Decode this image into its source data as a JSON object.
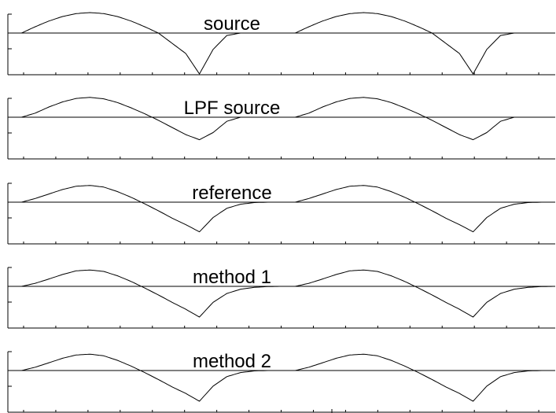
{
  "chart_data": [
    {
      "type": "line",
      "title": "source",
      "x": [
        0,
        0.05,
        0.1,
        0.15,
        0.2,
        0.25,
        0.3,
        0.35,
        0.4,
        0.45,
        0.5,
        0.55,
        0.6,
        0.65,
        0.7,
        0.75,
        0.8,
        0.85,
        0.9,
        0.95,
        1.0,
        1.05,
        1.1,
        1.15,
        1.2,
        1.25,
        1.3,
        1.35,
        1.4,
        1.45,
        1.5,
        1.55,
        1.6,
        1.65,
        1.7,
        1.75,
        1.8,
        1.85,
        1.9,
        1.95,
        2.0
      ],
      "series": [
        {
          "values": [
            0,
            0,
            0.309,
            0.588,
            0.809,
            0.951,
            1.0,
            0.951,
            0.809,
            0.588,
            0.309,
            0,
            -0.5,
            -1.0,
            -2.0,
            -0.8,
            -0.12,
            0,
            0,
            0,
            0,
            0,
            0.309,
            0.588,
            0.809,
            0.951,
            1.0,
            0.951,
            0.809,
            0.588,
            0.309,
            0,
            -0.5,
            -1.0,
            -2.0,
            -0.8,
            -0.12,
            0,
            0,
            0,
            0
          ]
        }
      ],
      "zero_line": true
    },
    {
      "type": "line",
      "title": "LPF source",
      "x": [
        0,
        0.05,
        0.1,
        0.15,
        0.2,
        0.25,
        0.3,
        0.35,
        0.4,
        0.45,
        0.5,
        0.55,
        0.6,
        0.65,
        0.7,
        0.75,
        0.8,
        0.85,
        0.9,
        0.95,
        1.0,
        1.05,
        1.1,
        1.15,
        1.2,
        1.25,
        1.3,
        1.35,
        1.4,
        1.45,
        1.5,
        1.55,
        1.6,
        1.65,
        1.7,
        1.75,
        1.8,
        1.85,
        1.9,
        1.95,
        2.0
      ],
      "series": [
        {
          "values": [
            0,
            0,
            0.2,
            0.5,
            0.75,
            0.92,
            0.97,
            0.9,
            0.72,
            0.46,
            0.17,
            -0.15,
            -0.5,
            -0.85,
            -1.1,
            -0.75,
            -0.2,
            0,
            0,
            0,
            0,
            0,
            0.2,
            0.5,
            0.75,
            0.92,
            0.97,
            0.9,
            0.72,
            0.46,
            0.17,
            -0.15,
            -0.5,
            -0.85,
            -1.1,
            -0.75,
            -0.2,
            0,
            0,
            0,
            0
          ]
        }
      ],
      "zero_line": true
    },
    {
      "type": "line",
      "title": "reference",
      "x": [
        0,
        0.05,
        0.1,
        0.15,
        0.2,
        0.25,
        0.3,
        0.35,
        0.4,
        0.45,
        0.5,
        0.55,
        0.6,
        0.65,
        0.7,
        0.75,
        0.8,
        0.85,
        0.9,
        0.95,
        1.0,
        1.05,
        1.1,
        1.15,
        1.2,
        1.25,
        1.3,
        1.35,
        1.4,
        1.45,
        1.5,
        1.55,
        1.6,
        1.65,
        1.7,
        1.75,
        1.8,
        1.85,
        1.9,
        1.95,
        2.0
      ],
      "series": [
        {
          "values": [
            0,
            0,
            0.18,
            0.4,
            0.62,
            0.78,
            0.82,
            0.74,
            0.52,
            0.24,
            -0.08,
            -0.42,
            -0.78,
            -1.1,
            -1.45,
            -0.75,
            -0.3,
            -0.1,
            -0.02,
            0,
            0,
            0,
            0.18,
            0.4,
            0.62,
            0.78,
            0.82,
            0.74,
            0.52,
            0.24,
            -0.08,
            -0.42,
            -0.78,
            -1.1,
            -1.45,
            -0.75,
            -0.3,
            -0.1,
            -0.02,
            0,
            0
          ]
        }
      ],
      "zero_line": true
    },
    {
      "type": "line",
      "title": "method 1",
      "x": [
        0,
        0.05,
        0.1,
        0.15,
        0.2,
        0.25,
        0.3,
        0.35,
        0.4,
        0.45,
        0.5,
        0.55,
        0.6,
        0.65,
        0.7,
        0.75,
        0.8,
        0.85,
        0.9,
        0.95,
        1.0,
        1.05,
        1.1,
        1.15,
        1.2,
        1.25,
        1.3,
        1.35,
        1.4,
        1.45,
        1.5,
        1.55,
        1.6,
        1.65,
        1.7,
        1.75,
        1.8,
        1.85,
        1.9,
        1.95,
        2.0
      ],
      "series": [
        {
          "values": [
            0,
            0,
            0.15,
            0.36,
            0.58,
            0.76,
            0.8,
            0.73,
            0.52,
            0.24,
            -0.08,
            -0.42,
            -0.78,
            -1.12,
            -1.5,
            -0.78,
            -0.35,
            -0.14,
            -0.05,
            -0.01,
            0,
            0,
            0.15,
            0.36,
            0.58,
            0.76,
            0.8,
            0.73,
            0.52,
            0.24,
            -0.08,
            -0.42,
            -0.78,
            -1.12,
            -1.5,
            -0.78,
            -0.35,
            -0.14,
            -0.05,
            -0.01,
            0
          ]
        }
      ],
      "zero_line": true
    },
    {
      "type": "line",
      "title": "method 2",
      "x": [
        0,
        0.05,
        0.1,
        0.15,
        0.2,
        0.25,
        0.3,
        0.35,
        0.4,
        0.45,
        0.5,
        0.55,
        0.6,
        0.65,
        0.7,
        0.75,
        0.8,
        0.85,
        0.9,
        0.95,
        1.0,
        1.05,
        1.1,
        1.15,
        1.2,
        1.25,
        1.3,
        1.35,
        1.4,
        1.45,
        1.5,
        1.55,
        1.6,
        1.65,
        1.7,
        1.75,
        1.8,
        1.85,
        1.9,
        1.95,
        2.0
      ],
      "series": [
        {
          "values": [
            0,
            0,
            0.16,
            0.38,
            0.6,
            0.76,
            0.8,
            0.72,
            0.5,
            0.22,
            -0.1,
            -0.44,
            -0.8,
            -1.12,
            -1.5,
            -0.76,
            -0.3,
            -0.1,
            -0.02,
            0,
            0,
            0,
            0.16,
            0.38,
            0.6,
            0.76,
            0.8,
            0.72,
            0.5,
            0.22,
            -0.1,
            -0.44,
            -0.8,
            -1.12,
            -1.5,
            -0.76,
            -0.3,
            -0.1,
            -0.02,
            0,
            0
          ]
        }
      ],
      "zero_line": true
    }
  ],
  "colors": {
    "line": "#000000",
    "background": "#ffffff"
  }
}
